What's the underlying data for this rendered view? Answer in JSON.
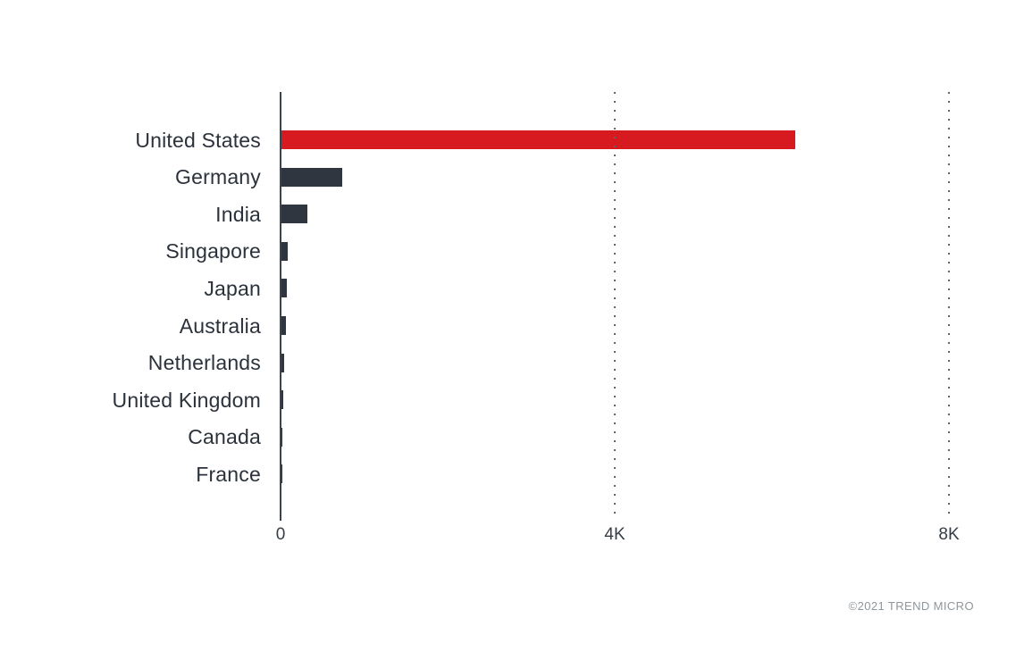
{
  "footer": {
    "copyright": "©2021 TREND MICRO"
  },
  "colors": {
    "background": "#ffffff",
    "highlight_bar": "#d71920",
    "default_bar": "#2f3640",
    "axis": "#3c444d",
    "grid_dot": "#5d656d",
    "category_label": "#2b323b",
    "tick_label": "#353d46",
    "copyright": "#8e979d"
  },
  "chart_data": {
    "type": "bar",
    "orientation": "horizontal",
    "title": "",
    "xlabel": "",
    "ylabel": "",
    "categories": [
      "United States",
      "Germany",
      "India",
      "Singapore",
      "Japan",
      "Australia",
      "Netherlands",
      "United Kingdom",
      "Canada",
      "France"
    ],
    "values": [
      6150,
      730,
      310,
      80,
      60,
      50,
      30,
      25,
      15,
      5
    ],
    "highlight_index": 0,
    "x_ticks": [
      {
        "label": "0",
        "value": 0
      },
      {
        "label": "4K",
        "value": 4000
      },
      {
        "label": "8K",
        "value": 8000
      }
    ],
    "xlim": [
      0,
      8300
    ],
    "grid": "vertical dotted lines at 4K and 8K, drawn over bars",
    "legend": "none"
  }
}
